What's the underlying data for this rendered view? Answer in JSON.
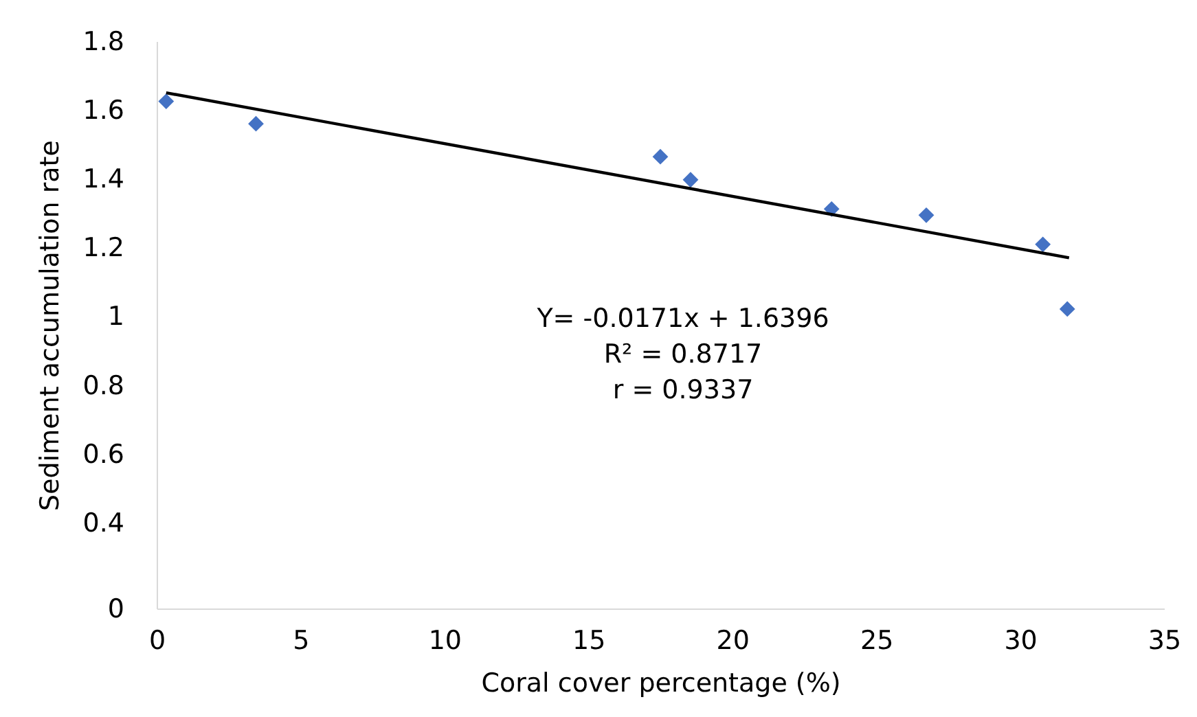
{
  "chart_data": {
    "type": "scatter",
    "xlabel": "Coral cover percentage (%)",
    "ylabel": "Sediment accumulation rate",
    "xlim": [
      0,
      35
    ],
    "xticks": [
      0,
      5,
      10,
      15,
      20,
      25,
      30,
      35
    ],
    "ylim": [
      0.15,
      1.8
    ],
    "yticks": [
      {
        "value": 0.15,
        "label": "0"
      },
      0.4,
      0.6,
      0.8,
      1,
      1.2,
      1.4,
      1.6,
      1.8
    ],
    "marker": "diamond",
    "series": [
      {
        "color": "#4472c4",
        "x": [
          0.33,
          3.45,
          17.5,
          18.55,
          23.45,
          26.74,
          30.79,
          31.64
        ],
        "values": [
          1.625,
          1.56,
          1.464,
          1.397,
          1.312,
          1.294,
          1.209,
          1.021
        ]
      },
      {
        "type": "line",
        "color": "#000000",
        "marker": "none",
        "line_style": "solid",
        "x": [
          0.33,
          31.7
        ],
        "values": [
          1.65,
          1.17
        ]
      }
    ],
    "annotations": [
      "Y= -0.0171x + 1.6396",
      "R² = 0.8717",
      "r = 0.9337"
    ]
  }
}
